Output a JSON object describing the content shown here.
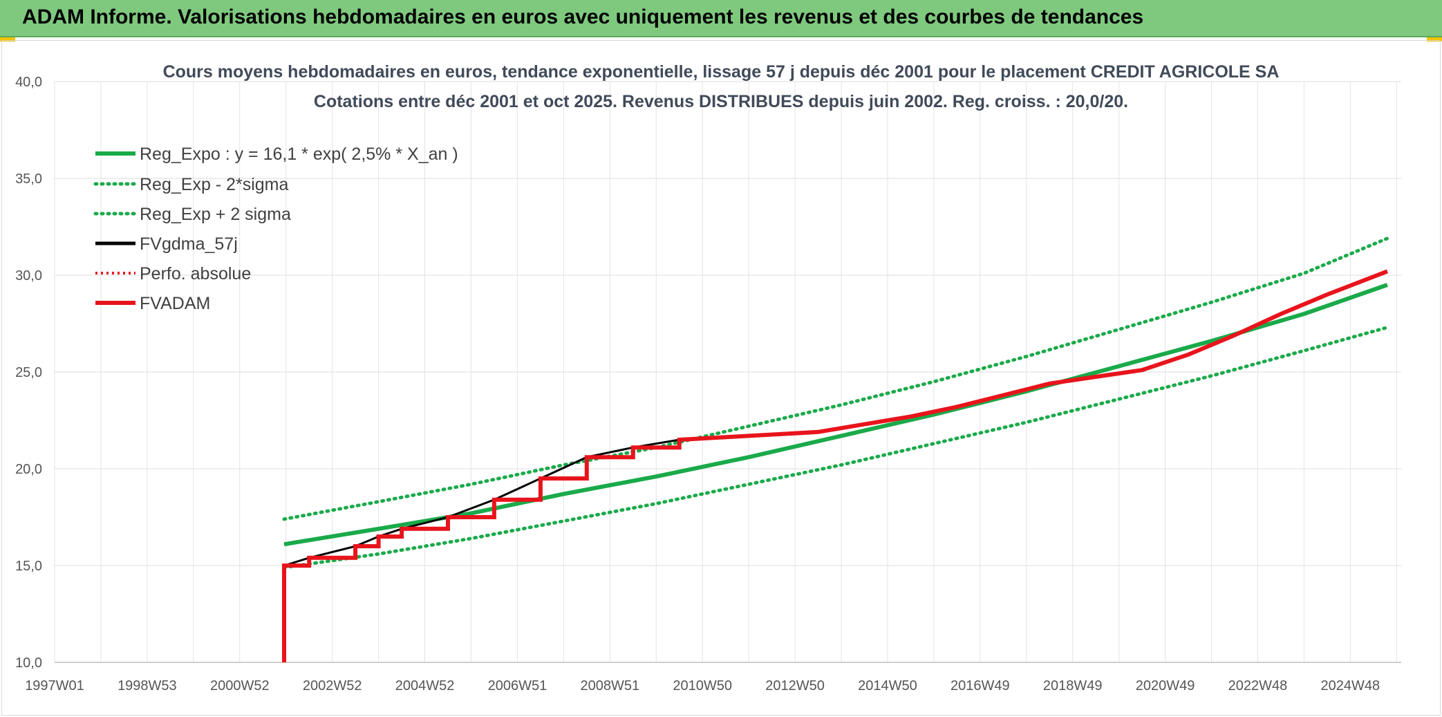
{
  "header": {
    "title": "ADAM Informe. Valorisations hebdomadaires en euros avec uniquement les revenus et des courbes de tendances"
  },
  "colors": {
    "header_bg": "#7fc97f",
    "reg_green": "#1aaa4a",
    "black": "#000000",
    "red": "#e8141c"
  },
  "chart_data": {
    "type": "line",
    "title": "Cours moyens hebdomadaires en euros, tendance exponentielle, lissage 57 j depuis déc 2001 pour le placement CREDIT AGRICOLE SA",
    "subtitle": "Cotations entre déc 2001 et oct 2025. Revenus DISTRIBUES depuis juin 2002. Reg. croiss. : 20,0/20.",
    "x_tick_labels": [
      "1997W01",
      "1998W53",
      "2000W52",
      "2002W52",
      "2004W52",
      "2006W51",
      "2008W51",
      "2010W50",
      "2012W50",
      "2014W50",
      "2016W49",
      "2018W49",
      "2020W49",
      "2022W48",
      "2024W48"
    ],
    "y_tick_labels": [
      "10,0",
      "15,0",
      "20,0",
      "25,0",
      "30,0",
      "35,0",
      "40,0"
    ],
    "xlim": [
      1997.0,
      2026.1
    ],
    "ylim": [
      10,
      40
    ],
    "grid": true,
    "legend_position": "top-left",
    "legend": [
      {
        "label": "Reg_Expo : y = 16,1 * exp( 2,5% *  X_an )",
        "style": "solid-thick",
        "color": "#1aaa4a"
      },
      {
        "label": "Reg_Exp - 2*sigma",
        "style": "dotted",
        "color": "#1aaa4a"
      },
      {
        "label": "Reg_Exp + 2 sigma",
        "style": "dotted",
        "color": "#1aaa4a"
      },
      {
        "label": "FVgdma_57j",
        "style": "solid",
        "color": "#000000"
      },
      {
        "label": "Perfo. absolue",
        "style": "dotted",
        "color": "#e8141c"
      },
      {
        "label": "FVADAM",
        "style": "solid-thick",
        "color": "#e8141c"
      }
    ],
    "series": [
      {
        "name": "Reg_Expo : y = 16,1 * exp( 2,5% *  X_an )",
        "x": [
          2001.96,
          2004.0,
          2006.0,
          2008.0,
          2010.0,
          2012.0,
          2014.0,
          2016.0,
          2018.0,
          2020.0,
          2022.0,
          2024.0,
          2025.8
        ],
        "y": [
          16.1,
          16.9,
          17.7,
          18.7,
          19.6,
          20.6,
          21.7,
          22.8,
          24.0,
          25.3,
          26.6,
          28.0,
          29.5
        ]
      },
      {
        "name": "Reg_Exp - 2*sigma",
        "x": [
          2001.96,
          2004.0,
          2006.0,
          2008.0,
          2010.0,
          2012.0,
          2014.0,
          2016.0,
          2018.0,
          2020.0,
          2022.0,
          2024.0,
          2025.8
        ],
        "y": [
          14.9,
          15.6,
          16.4,
          17.3,
          18.2,
          19.2,
          20.2,
          21.3,
          22.4,
          23.6,
          24.8,
          26.1,
          27.3
        ]
      },
      {
        "name": "Reg_Exp + 2 sigma",
        "x": [
          2001.96,
          2004.0,
          2006.0,
          2008.0,
          2010.0,
          2012.0,
          2014.0,
          2016.0,
          2018.0,
          2020.0,
          2022.0,
          2024.0,
          2025.8
        ],
        "y": [
          17.4,
          18.3,
          19.2,
          20.2,
          21.1,
          22.2,
          23.3,
          24.5,
          25.8,
          27.2,
          28.6,
          30.1,
          31.9
        ]
      },
      {
        "name": "FVgdma_57j",
        "x": [
          2001.96,
          2002.5,
          2003.5,
          2004.0,
          2004.5,
          2005.5,
          2006.5,
          2007.5,
          2008.5,
          2009.5,
          2010.5,
          2013.5,
          2014.5,
          2015.5,
          2016.5,
          2017.5,
          2018.5,
          2020.5,
          2021.5,
          2022.5,
          2023.5,
          2024.5,
          2025.8
        ],
        "y": [
          15.0,
          15.4,
          16.0,
          16.5,
          16.9,
          17.5,
          18.4,
          19.5,
          20.6,
          21.1,
          21.5,
          21.9,
          22.3,
          22.7,
          23.2,
          23.8,
          24.4,
          25.1,
          25.9,
          26.9,
          28.0,
          29.0,
          30.2
        ]
      },
      {
        "name": "FVADAM",
        "x": [
          2001.96,
          2001.96,
          2002.5,
          2002.5,
          2003.5,
          2003.5,
          2004.0,
          2004.0,
          2004.5,
          2004.5,
          2005.5,
          2005.5,
          2006.5,
          2006.5,
          2007.5,
          2007.5,
          2008.5,
          2008.5,
          2009.5,
          2009.5,
          2010.5,
          2010.5,
          2013.5,
          2013.5,
          2014.5,
          2014.5,
          2015.5,
          2015.5,
          2016.5,
          2016.5,
          2017.5,
          2017.5,
          2018.5,
          2018.5,
          2020.5,
          2020.5,
          2021.5,
          2021.5,
          2022.5,
          2022.5,
          2023.5,
          2023.5,
          2024.5,
          2024.5,
          2025.8
        ],
        "y": [
          10.0,
          15.0,
          15.0,
          15.4,
          15.4,
          16.0,
          16.0,
          16.5,
          16.5,
          16.9,
          16.9,
          17.5,
          17.5,
          18.4,
          18.4,
          19.5,
          19.5,
          20.6,
          20.6,
          21.1,
          21.1,
          21.5,
          21.9,
          21.9,
          22.3,
          22.3,
          22.7,
          22.7,
          23.2,
          23.2,
          23.8,
          23.8,
          24.4,
          24.4,
          25.1,
          25.1,
          25.9,
          25.9,
          26.9,
          26.9,
          28.0,
          28.0,
          29.0,
          29.0,
          30.2
        ]
      }
    ]
  }
}
